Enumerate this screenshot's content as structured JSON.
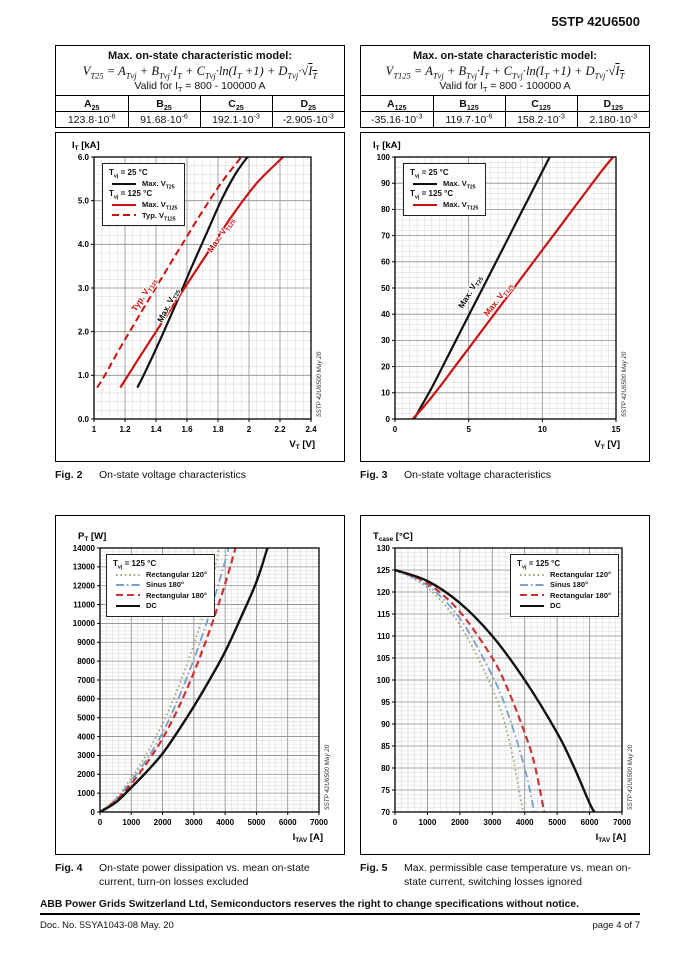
{
  "page": {
    "header_title": "5STP 42U6500",
    "footer": {
      "notice": "ABB Power Grids Switzerland Ltd, Semiconductors reserves the right to change specifications without notice.",
      "doc_no": "Doc. No. 5SYA1043-08 May. 20",
      "page_label": "page 4 of 7"
    }
  },
  "side_text": "5STP 42U6500 May 20",
  "model_boxes": [
    {
      "title": "Max. on-state characteristic model:",
      "formula": "V_{T25} = A_{Tvj} + B_{Tvj}·I_{T} + C_{Tvj}·ln(I_{T} +1) + D_{Tvj}·√{I_{T}}",
      "valid": "Valid for I_{T} = 800 - 100000 A",
      "params": [
        {
          "name": "A_{25}",
          "value": "123.8·10^{-6}"
        },
        {
          "name": "B_{25}",
          "value": "91.68·10^{-6}"
        },
        {
          "name": "C_{25}",
          "value": "192.1·10^{-3}"
        },
        {
          "name": "D_{25}",
          "value": "-2.905·10^{-3}"
        }
      ]
    },
    {
      "title": "Max. on-state characteristic model:",
      "formula": "V_{T125} = A_{Tvj} + B_{Tvj}·I_{T} + C_{Tvj}·ln(I_{T} +1) + D_{Tvj}·√{I_{T}}",
      "valid": "Valid for I_{T} = 800 - 100000 A",
      "params": [
        {
          "name": "A_{125}",
          "value": "-35.16·10^{-3}"
        },
        {
          "name": "B_{125}",
          "value": "119.7·10^{-6}"
        },
        {
          "name": "C_{125}",
          "value": "158.2·10^{-3}"
        },
        {
          "name": "D_{125}",
          "value": "2.180·10^{-3}"
        }
      ]
    }
  ],
  "captions": [
    {
      "fig": "Fig. 2",
      "text": "On-state voltage characteristics"
    },
    {
      "fig": "Fig. 3",
      "text": "On-state voltage characteristics"
    },
    {
      "fig": "Fig. 4",
      "text": "On-state power dissipation vs. mean on-state current, turn-on losses excluded"
    },
    {
      "fig": "Fig. 5",
      "text": "Max. permissible case temperature vs. mean on-state current, switching losses ignored"
    }
  ],
  "chart_data": [
    {
      "id": "fig2",
      "type": "line",
      "xlabel": "V_{T} [V]",
      "ylabel": "I_{T} [kA]",
      "xlim": [
        1,
        2.4
      ],
      "ylim": [
        0,
        6
      ],
      "x_major": 0.2,
      "x_minor": 0.05,
      "y_major": 1,
      "y_minor": 0.2,
      "x_tick_labels": [
        "1",
        "1.2",
        "1.4",
        "1.6",
        "1.8",
        "2",
        "2.2",
        "2.4"
      ],
      "y_tick_labels": [
        "0.0",
        "1.0",
        "2.0",
        "3.0",
        "4.0",
        "5.0",
        "6.0"
      ],
      "grid": true,
      "legend": {
        "pos": "top-left",
        "groups": [
          {
            "title": "T_{vj} = 25 °C",
            "entries": [
              {
                "style": "solid",
                "color": "#111111",
                "label": "Max. V_{T25}"
              }
            ]
          },
          {
            "title": "T_{vj} = 125 °C",
            "entries": [
              {
                "style": "solid",
                "color": "#cc1111",
                "label": "Max. V_{T125}"
              },
              {
                "style": "dashed",
                "color": "#cc1111",
                "label": "Typ. V_{T125}"
              }
            ]
          }
        ]
      },
      "series": [
        {
          "name": "Max. V_{T25}",
          "style": "solid",
          "color": "#111111",
          "width": 2.2,
          "points": [
            [
              1.28,
              0.72
            ],
            [
              1.32,
              1.0
            ],
            [
              1.38,
              1.45
            ],
            [
              1.45,
              2.0
            ],
            [
              1.53,
              2.65
            ],
            [
              1.62,
              3.4
            ],
            [
              1.72,
              4.2
            ],
            [
              1.82,
              5.0
            ],
            [
              1.91,
              5.6
            ],
            [
              1.99,
              6.0
            ]
          ]
        },
        {
          "name": "Max. V_{T125}",
          "style": "solid",
          "color": "#cc1111",
          "width": 2.2,
          "points": [
            [
              1.17,
              0.72
            ],
            [
              1.22,
              1.0
            ],
            [
              1.3,
              1.45
            ],
            [
              1.4,
              2.0
            ],
            [
              1.51,
              2.6
            ],
            [
              1.63,
              3.25
            ],
            [
              1.76,
              3.95
            ],
            [
              1.9,
              4.7
            ],
            [
              2.05,
              5.4
            ],
            [
              2.22,
              6.0
            ]
          ]
        },
        {
          "name": "Typ. V_{T125}",
          "style": "dashed",
          "color": "#cc1111",
          "width": 2,
          "points": [
            [
              1.02,
              0.72
            ],
            [
              1.07,
              1.0
            ],
            [
              1.14,
              1.45
            ],
            [
              1.23,
              2.0
            ],
            [
              1.33,
              2.6
            ],
            [
              1.44,
              3.25
            ],
            [
              1.56,
              3.95
            ],
            [
              1.69,
              4.7
            ],
            [
              1.82,
              5.4
            ],
            [
              1.95,
              6.0
            ]
          ]
        }
      ],
      "annotations": [
        {
          "text": "Typ. V_{T125}",
          "x": 1.27,
          "y": 2.45,
          "angle": -57,
          "color": "#cc1111"
        },
        {
          "text": "Max. V_{T25}",
          "x": 1.44,
          "y": 2.2,
          "angle": -63,
          "color": "#111111"
        },
        {
          "text": "Max. V_{T125}",
          "x": 1.76,
          "y": 3.8,
          "angle": -56,
          "color": "#cc1111"
        }
      ]
    },
    {
      "id": "fig3",
      "type": "line",
      "xlabel": "V_{T} [V]",
      "ylabel": "I_{T} [kA]",
      "xlim": [
        0,
        15
      ],
      "ylim": [
        0,
        100
      ],
      "x_major": 5,
      "x_minor": 0.5,
      "y_major": 10,
      "y_minor": 2,
      "x_tick_labels": [
        "0",
        "5",
        "10",
        "15"
      ],
      "y_tick_labels": [
        "0",
        "10",
        "20",
        "30",
        "40",
        "50",
        "60",
        "70",
        "80",
        "90",
        "100"
      ],
      "grid": true,
      "legend": {
        "pos": "top-left",
        "groups": [
          {
            "title": "T_{vj} = 25 °C",
            "entries": [
              {
                "style": "solid",
                "color": "#111111",
                "label": "Max. V_{T25}"
              }
            ]
          },
          {
            "title": "T_{vj} = 125 °C",
            "entries": [
              {
                "style": "solid",
                "color": "#cc1111",
                "label": "Max. V_{T125}"
              }
            ]
          }
        ]
      },
      "series": [
        {
          "name": "Max. V_{T25}",
          "style": "solid",
          "color": "#111111",
          "width": 2.2,
          "points": [
            [
              1.3,
              0
            ],
            [
              1.7,
              4
            ],
            [
              2.5,
              12
            ],
            [
              3.5,
              23
            ],
            [
              4.5,
              34
            ],
            [
              5.5,
              45
            ],
            [
              6.5,
              56
            ],
            [
              7.5,
              67
            ],
            [
              8.5,
              78
            ],
            [
              9.5,
              89
            ],
            [
              10.5,
              100
            ]
          ]
        },
        {
          "name": "Max. V_{T125}",
          "style": "solid",
          "color": "#cc1111",
          "width": 2.2,
          "points": [
            [
              1.2,
              0
            ],
            [
              2,
              5
            ],
            [
              3,
              12
            ],
            [
              4,
              19.5
            ],
            [
              5,
              27
            ],
            [
              6,
              34.5
            ],
            [
              7,
              42
            ],
            [
              8,
              49.5
            ],
            [
              9,
              57
            ],
            [
              10,
              64.5
            ],
            [
              11,
              72
            ],
            [
              12,
              79.5
            ],
            [
              13,
              87
            ],
            [
              14,
              94.5
            ],
            [
              14.8,
              100
            ]
          ]
        }
      ],
      "annotations": [
        {
          "text": "Max. V_{T25}",
          "x": 4.6,
          "y": 42,
          "angle": -59,
          "color": "#111111"
        },
        {
          "text": "Max. V_{T125}",
          "x": 6.3,
          "y": 39,
          "angle": -52,
          "color": "#cc1111"
        }
      ]
    },
    {
      "id": "fig4",
      "type": "line",
      "xlabel": "I_{TAV} [A]",
      "ylabel": "P_{T} [W]",
      "xlim": [
        0,
        7000
      ],
      "ylim": [
        0,
        14000
      ],
      "x_major": 1000,
      "x_minor": 200,
      "y_major": 1000,
      "y_minor": 200,
      "x_tick_labels": [
        "0",
        "1000",
        "2000",
        "3000",
        "4000",
        "5000",
        "6000",
        "7000"
      ],
      "y_tick_labels": [
        "0",
        "1000",
        "2000",
        "3000",
        "4000",
        "5000",
        "6000",
        "7000",
        "8000",
        "9000",
        "10000",
        "11000",
        "12000",
        "13000",
        "14000"
      ],
      "grid": true,
      "legend": {
        "pos": "top-left",
        "groups": [
          {
            "title": "T_{vj} = 125 °C",
            "entries": [
              {
                "style": "dotted",
                "color": "#9aa87e",
                "label": "Rectangular 120°"
              },
              {
                "style": "dashdot",
                "color": "#7a9fc9",
                "label": "Sinus 180°"
              },
              {
                "style": "dashed",
                "color": "#cc3333",
                "label": "Rectangular 180°"
              },
              {
                "style": "solid",
                "color": "#111111",
                "label": "DC"
              }
            ]
          }
        ]
      },
      "series": [
        {
          "name": "Rectangular 120°",
          "style": "dotted",
          "color": "#9aa87e",
          "width": 1.8,
          "points": [
            [
              0,
              0
            ],
            [
              500,
              700
            ],
            [
              1000,
              1800
            ],
            [
              1500,
              3100
            ],
            [
              2000,
              4700
            ],
            [
              2500,
              6600
            ],
            [
              3000,
              8900
            ],
            [
              3500,
              11600
            ],
            [
              3800,
              14000
            ]
          ]
        },
        {
          "name": "Sinus 180°",
          "style": "dashdot",
          "color": "#7a9fc9",
          "width": 1.8,
          "points": [
            [
              0,
              0
            ],
            [
              500,
              650
            ],
            [
              1000,
              1650
            ],
            [
              1500,
              2800
            ],
            [
              2000,
              4200
            ],
            [
              2500,
              6000
            ],
            [
              3000,
              8100
            ],
            [
              3500,
              10500
            ],
            [
              4000,
              13300
            ],
            [
              4100,
              14000
            ]
          ]
        },
        {
          "name": "Rectangular 180°",
          "style": "dashed",
          "color": "#cc3333",
          "width": 2.2,
          "points": [
            [
              0,
              0
            ],
            [
              500,
              600
            ],
            [
              1000,
              1500
            ],
            [
              1500,
              2600
            ],
            [
              2000,
              3900
            ],
            [
              2500,
              5500
            ],
            [
              3000,
              7400
            ],
            [
              3500,
              9600
            ],
            [
              4000,
              12100
            ],
            [
              4330,
              14000
            ]
          ]
        },
        {
          "name": "DC",
          "style": "solid",
          "color": "#111111",
          "width": 2.4,
          "points": [
            [
              0,
              0
            ],
            [
              500,
              500
            ],
            [
              1000,
              1300
            ],
            [
              1500,
              2150
            ],
            [
              2000,
              3100
            ],
            [
              2500,
              4300
            ],
            [
              3000,
              5600
            ],
            [
              3500,
              7000
            ],
            [
              4000,
              8500
            ],
            [
              4500,
              10300
            ],
            [
              5000,
              12200
            ],
            [
              5350,
              14000
            ]
          ]
        }
      ],
      "annotations": []
    },
    {
      "id": "fig5",
      "type": "line",
      "xlabel": "I_{TAV} [A]",
      "ylabel": "T_{case} [°C]",
      "xlim": [
        0,
        7000
      ],
      "ylim": [
        70,
        130
      ],
      "x_major": 1000,
      "x_minor": 200,
      "y_major": 5,
      "y_minor": 1,
      "x_tick_labels": [
        "0",
        "1000",
        "2000",
        "3000",
        "4000",
        "5000",
        "6000",
        "7000"
      ],
      "y_tick_labels": [
        "70",
        "75",
        "80",
        "85",
        "90",
        "95",
        "100",
        "105",
        "110",
        "115",
        "120",
        "125",
        "130"
      ],
      "grid": true,
      "legend": {
        "pos": "top-right",
        "groups": [
          {
            "title": "T_{vj} = 125 °C",
            "entries": [
              {
                "style": "dotted",
                "color": "#9aa87e",
                "label": "Rectangular 120°"
              },
              {
                "style": "dashdot",
                "color": "#7a9fc9",
                "label": "Sinus 180°"
              },
              {
                "style": "dashed",
                "color": "#cc3333",
                "label": "Rectangular 180°"
              },
              {
                "style": "solid",
                "color": "#111111",
                "label": "DC"
              }
            ]
          }
        ]
      },
      "series": [
        {
          "name": "Rectangular 120°",
          "style": "dotted",
          "color": "#9aa87e",
          "width": 1.8,
          "points": [
            [
              0,
              125
            ],
            [
              1000,
              121
            ],
            [
              2000,
              112.5
            ],
            [
              3000,
              98
            ],
            [
              3500,
              87
            ],
            [
              3950,
              70
            ]
          ]
        },
        {
          "name": "Sinus 180°",
          "style": "dashdot",
          "color": "#7a9fc9",
          "width": 1.8,
          "points": [
            [
              0,
              125
            ],
            [
              1000,
              121.5
            ],
            [
              2000,
              114
            ],
            [
              3000,
              101
            ],
            [
              3500,
              92
            ],
            [
              4000,
              80
            ],
            [
              4300,
              70
            ]
          ]
        },
        {
          "name": "Rectangular 180°",
          "style": "dashed",
          "color": "#cc3333",
          "width": 2.2,
          "points": [
            [
              0,
              125
            ],
            [
              1000,
              122
            ],
            [
              2000,
              115.5
            ],
            [
              3000,
              105
            ],
            [
              3500,
              97.5
            ],
            [
              4000,
              88
            ],
            [
              4300,
              81
            ],
            [
              4600,
              70
            ]
          ]
        },
        {
          "name": "DC",
          "style": "solid",
          "color": "#111111",
          "width": 2.4,
          "points": [
            [
              0,
              125
            ],
            [
              1000,
              122.5
            ],
            [
              2000,
              117.5
            ],
            [
              3000,
              110
            ],
            [
              4000,
              100
            ],
            [
              5000,
              88
            ],
            [
              5500,
              80.5
            ],
            [
              6000,
              72
            ],
            [
              6150,
              70
            ]
          ]
        }
      ],
      "annotations": []
    }
  ]
}
